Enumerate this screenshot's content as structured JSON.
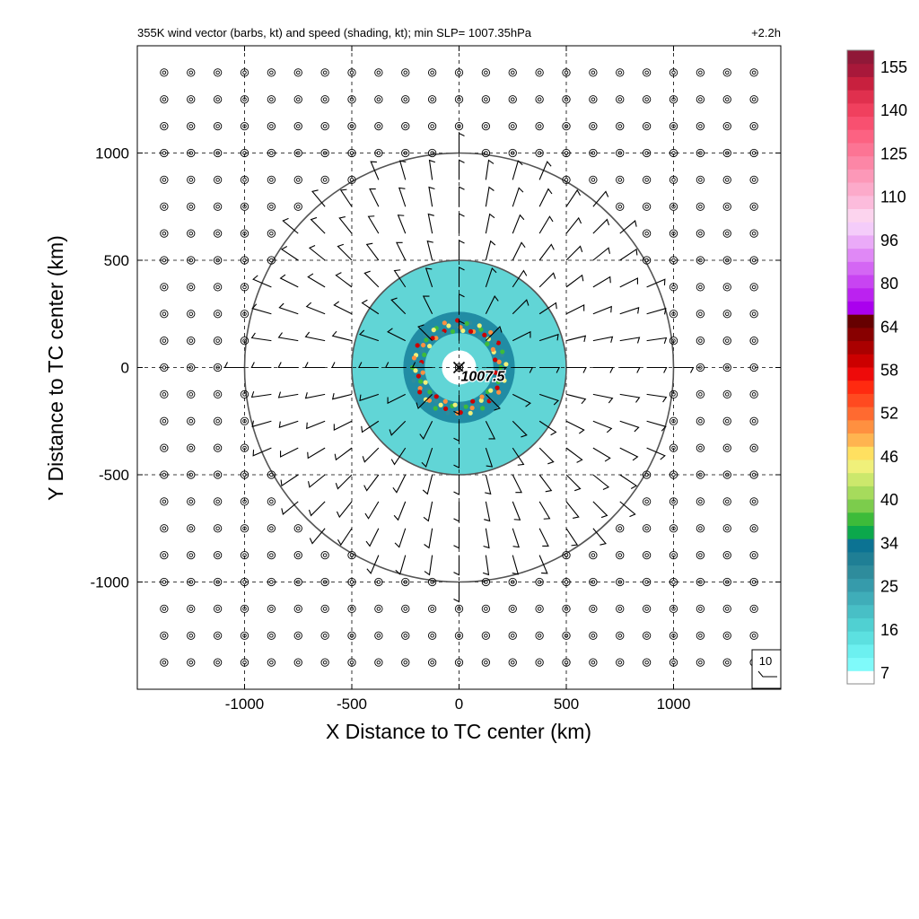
{
  "chart_data": {
    "type": "heatmap",
    "title": "355K wind vector (barbs, kt) and speed (shading, kt); min SLP= 1007.35hPa",
    "time_label": "+2.2h",
    "xlabel": "X Distance to TC center (km)",
    "ylabel": "Y Distance to TC center (km)",
    "xlim": [
      -1500,
      1500
    ],
    "ylim": [
      -1500,
      1500
    ],
    "x_ticks": [
      -1000,
      -500,
      0,
      500,
      1000
    ],
    "y_ticks": [
      -1000,
      -500,
      0,
      500,
      1000
    ],
    "x_tick_labels": [
      "-1000",
      "-500",
      "0",
      "500",
      "1000"
    ],
    "y_tick_labels": [
      "-1000",
      "-500",
      "0",
      "500",
      "1000"
    ],
    "grid": true,
    "range_rings_km": [
      500,
      1000
    ],
    "center_marker": {
      "x": 0,
      "y": 0,
      "label": "1007.5"
    },
    "barb_grid_spacing_km": 125,
    "barb_reference_label": "10",
    "speed_field": {
      "units": "kt",
      "rings": [
        {
          "inner_km": 80,
          "outer_km": 500,
          "speed_kt": 18
        },
        {
          "inner_km": 160,
          "outer_km": 260,
          "speed_kt": 35
        }
      ]
    },
    "colorbar": {
      "labels": [
        "155",
        "140",
        "125",
        "110",
        "96",
        "80",
        "64",
        "58",
        "52",
        "46",
        "40",
        "34",
        "25",
        "16",
        "7"
      ],
      "colors": [
        "#ffffff",
        "#7ffafa",
        "#6cf0f0",
        "#5ce0e0",
        "#50d0d2",
        "#48bfc6",
        "#3fadb9",
        "#369bab",
        "#2e8c9c",
        "#1f7f95",
        "#0c7393",
        "#0ca84c",
        "#3dbb3a",
        "#7ccc4c",
        "#a6db5c",
        "#cce86c",
        "#f0f07a",
        "#ffe060",
        "#ffb450",
        "#ff9040",
        "#ff6a30",
        "#ff4a20",
        "#ff2a10",
        "#ee0a0a",
        "#cc0000",
        "#aa0000",
        "#880000",
        "#660000",
        "#aa00ee",
        "#bb22f0",
        "#c844f2",
        "#d466f4",
        "#e088f6",
        "#eaaaf8",
        "#f4ccfa",
        "#fcd4ee",
        "#fcbcdc",
        "#fcaaca",
        "#fc98b8",
        "#fc86a6",
        "#fc7494",
        "#fc6282",
        "#f85070",
        "#f0405e",
        "#e0304e",
        "#c8203e",
        "#a8183a",
        "#901838"
      ]
    }
  }
}
